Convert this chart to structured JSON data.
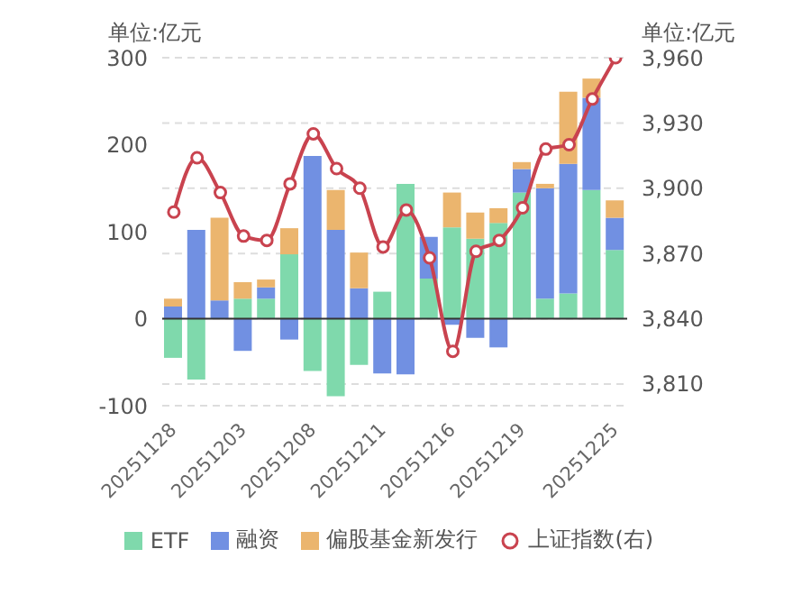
{
  "chart_data": {
    "type": "bar",
    "stacked": true,
    "ylabel": "单位:亿元",
    "y2label": "单位:亿元",
    "categories": [
      "20251128",
      null,
      null,
      "20251203",
      null,
      null,
      "20251208",
      null,
      null,
      "20251211",
      null,
      null,
      "20251216",
      null,
      null,
      "20251219",
      null,
      null,
      null,
      "20251225"
    ],
    "series": [
      {
        "name": "ETF",
        "color": "#7fd9ac",
        "values": [
          -45,
          -70,
          0,
          23,
          23,
          74,
          -60,
          -89,
          -53,
          31,
          155,
          46,
          105,
          92,
          110,
          145,
          23,
          29,
          148,
          79
        ]
      },
      {
        "name": "融资",
        "color": "#7190e2",
        "values": [
          14,
          102,
          21,
          -37,
          13,
          -24,
          187,
          102,
          35,
          -63,
          -64,
          48,
          -7,
          -22,
          -33,
          27,
          127,
          149,
          106,
          37
        ]
      },
      {
        "name": "偏股基金新发行",
        "color": "#ebb56e",
        "values": [
          9,
          null,
          95,
          19,
          9,
          30,
          null,
          46,
          41,
          null,
          null,
          null,
          40,
          30,
          17,
          8,
          5,
          83,
          22,
          20
        ]
      },
      {
        "name": "上证指数(右)",
        "type": "line",
        "axis": "y2",
        "color": "#c9434f",
        "marker": "circle",
        "values": [
          3889,
          3914,
          3898,
          3878,
          3876,
          3902,
          3925,
          3909,
          3900,
          3873,
          3890,
          3868,
          3825,
          3871,
          3876,
          3891,
          3918,
          3920,
          3941,
          3960
        ]
      }
    ],
    "ylim": [
      -100,
      300
    ],
    "yticks": [
      -100,
      0,
      100,
      200,
      300
    ],
    "y2lim": [
      3800,
      3960
    ],
    "y2ticks": [
      {
        "value": 3810,
        "label": "3,810"
      },
      {
        "value": 3840,
        "label": "3,840"
      },
      {
        "value": 3870,
        "label": "3,870"
      },
      {
        "value": 3900,
        "label": "3,900"
      },
      {
        "value": 3930,
        "label": "3,930"
      },
      {
        "value": 3960,
        "label": "3,960"
      }
    ],
    "grid": "y",
    "legend": "bottom"
  }
}
